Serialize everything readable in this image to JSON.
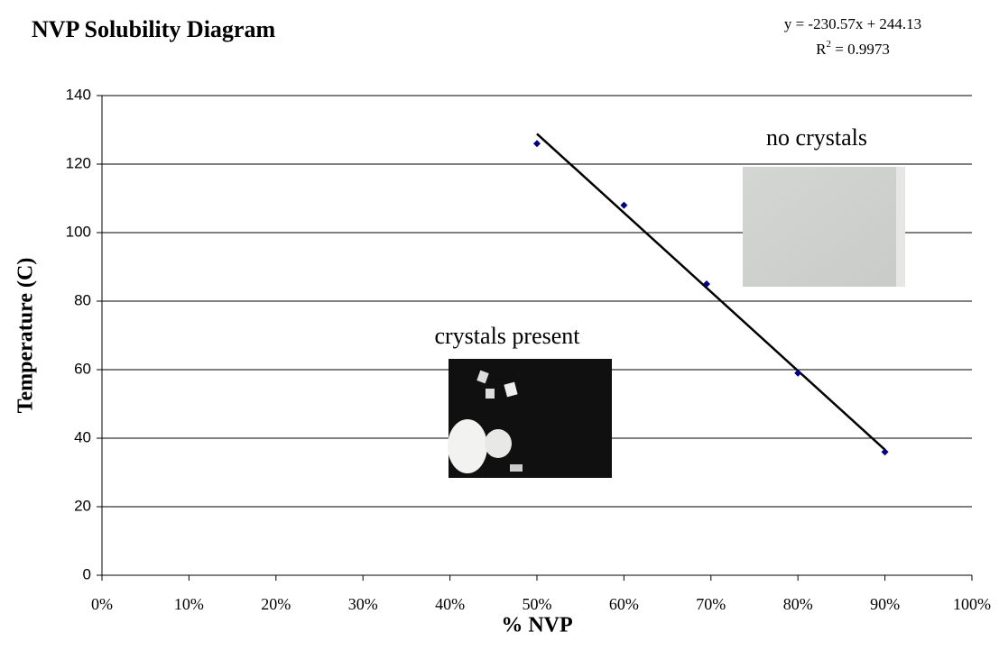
{
  "chart_data": {
    "type": "scatter",
    "title": "NVP Solubility Diagram",
    "x_label": "% NVP",
    "y_label": "Temperature (C)",
    "x": [
      0.5,
      0.6,
      0.695,
      0.8,
      0.9
    ],
    "values": [
      126,
      108,
      85,
      59,
      36
    ],
    "color": "#000080",
    "trendline": {
      "slope": -230.57,
      "intercept": 244.13,
      "color": "#000000",
      "equation_label": "y = -230.57x + 244.13",
      "r_squared_label": [
        "R",
        "2",
        " = 0.9973"
      ]
    },
    "annotations": [
      "no crystals",
      "crystals present"
    ],
    "xlim": [
      0,
      1
    ],
    "xticks": [
      {
        "value": 0,
        "label": "0%"
      },
      {
        "value": 0.1,
        "label": "10%"
      },
      {
        "value": 0.2,
        "label": "20%"
      },
      {
        "value": 0.3,
        "label": "30%"
      },
      {
        "value": 0.4,
        "label": "40%"
      },
      {
        "value": 0.5,
        "label": "50%"
      },
      {
        "value": 0.6,
        "label": "60%"
      },
      {
        "value": 0.7,
        "label": "70%"
      },
      {
        "value": 0.8,
        "label": "80%"
      },
      {
        "value": 0.9,
        "label": "90%"
      },
      {
        "value": 1,
        "label": "100%"
      }
    ],
    "ylim": [
      0,
      140
    ],
    "yticks": [
      0,
      20,
      40,
      60,
      80,
      100,
      120,
      140
    ],
    "grid": true
  }
}
